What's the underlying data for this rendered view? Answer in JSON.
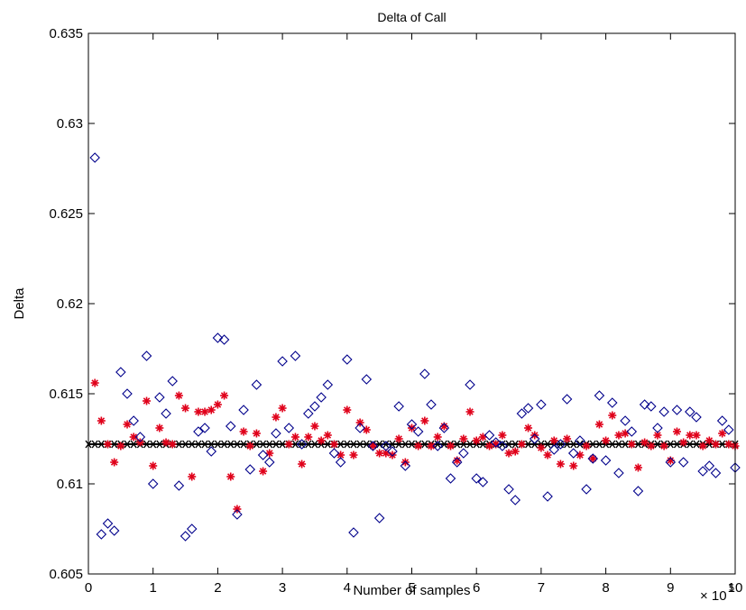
{
  "chart_data": {
    "type": "scatter",
    "title": "Delta of Call",
    "xlabel": "Number of samples",
    "ylabel": "Delta",
    "x_exponent_label": "× 10",
    "x_exponent_power": "5",
    "xlim": [
      0,
      10
    ],
    "ylim": [
      0.605,
      0.635
    ],
    "x_scale_multiplier": 100000,
    "x_ticks": [
      0,
      1,
      2,
      3,
      4,
      5,
      6,
      7,
      8,
      9,
      10
    ],
    "x_tick_labels": [
      "0",
      "1",
      "2",
      "3",
      "4",
      "5",
      "6",
      "7",
      "8",
      "9",
      "10"
    ],
    "y_ticks": [
      0.605,
      0.61,
      0.615,
      0.62,
      0.625,
      0.63,
      0.635
    ],
    "y_tick_labels": [
      "0.605",
      "0.61",
      "0.615",
      "0.62",
      "0.625",
      "0.63",
      "0.635"
    ],
    "grid": false,
    "series": [
      {
        "marker": "diamond",
        "color": "#00008b",
        "points": [
          [
            0.1,
            0.6281
          ],
          [
            0.2,
            0.6072
          ],
          [
            0.3,
            0.6078
          ],
          [
            0.4,
            0.6074
          ],
          [
            0.5,
            0.6162
          ],
          [
            0.6,
            0.615
          ],
          [
            0.7,
            0.6135
          ],
          [
            0.8,
            0.6126
          ],
          [
            0.9,
            0.6171
          ],
          [
            1.0,
            0.61
          ],
          [
            1.1,
            0.6148
          ],
          [
            1.2,
            0.6139
          ],
          [
            1.3,
            0.6157
          ],
          [
            1.4,
            0.6099
          ],
          [
            1.5,
            0.6071
          ],
          [
            1.6,
            0.6075
          ],
          [
            1.7,
            0.6129
          ],
          [
            1.8,
            0.6131
          ],
          [
            1.9,
            0.6118
          ],
          [
            2.0,
            0.6181
          ],
          [
            2.1,
            0.618
          ],
          [
            2.2,
            0.6132
          ],
          [
            2.3,
            0.6083
          ],
          [
            2.4,
            0.6141
          ],
          [
            2.5,
            0.6108
          ],
          [
            2.6,
            0.6155
          ],
          [
            2.7,
            0.6116
          ],
          [
            2.8,
            0.6112
          ],
          [
            2.9,
            0.6128
          ],
          [
            3.0,
            0.6168
          ],
          [
            3.1,
            0.6131
          ],
          [
            3.2,
            0.6171
          ],
          [
            3.3,
            0.6122
          ],
          [
            3.4,
            0.6139
          ],
          [
            3.5,
            0.6143
          ],
          [
            3.6,
            0.6148
          ],
          [
            3.7,
            0.6155
          ],
          [
            3.8,
            0.6117
          ],
          [
            3.9,
            0.6112
          ],
          [
            4.0,
            0.6169
          ],
          [
            4.1,
            0.6073
          ],
          [
            4.2,
            0.6131
          ],
          [
            4.3,
            0.6158
          ],
          [
            4.4,
            0.6121
          ],
          [
            4.5,
            0.6081
          ],
          [
            4.6,
            0.6121
          ],
          [
            4.7,
            0.6118
          ],
          [
            4.8,
            0.6143
          ],
          [
            4.9,
            0.611
          ],
          [
            5.0,
            0.6133
          ],
          [
            5.1,
            0.6129
          ],
          [
            5.2,
            0.6161
          ],
          [
            5.3,
            0.6144
          ],
          [
            5.4,
            0.6121
          ],
          [
            5.5,
            0.6131
          ],
          [
            5.6,
            0.6103
          ],
          [
            5.7,
            0.6112
          ],
          [
            5.8,
            0.6117
          ],
          [
            5.9,
            0.6155
          ],
          [
            6.0,
            0.6103
          ],
          [
            6.1,
            0.6101
          ],
          [
            6.2,
            0.6127
          ],
          [
            6.3,
            0.6123
          ],
          [
            6.4,
            0.6121
          ],
          [
            6.5,
            0.6097
          ],
          [
            6.6,
            0.6091
          ],
          [
            6.7,
            0.6139
          ],
          [
            6.8,
            0.6142
          ],
          [
            6.9,
            0.6125
          ],
          [
            7.0,
            0.6144
          ],
          [
            7.1,
            0.6093
          ],
          [
            7.2,
            0.6119
          ],
          [
            7.3,
            0.6122
          ],
          [
            7.4,
            0.6147
          ],
          [
            7.5,
            0.6117
          ],
          [
            7.6,
            0.6124
          ],
          [
            7.7,
            0.6097
          ],
          [
            7.8,
            0.6114
          ],
          [
            7.9,
            0.6149
          ],
          [
            8.0,
            0.6113
          ],
          [
            8.1,
            0.6145
          ],
          [
            8.2,
            0.6106
          ],
          [
            8.3,
            0.6135
          ],
          [
            8.4,
            0.6129
          ],
          [
            8.5,
            0.6096
          ],
          [
            8.6,
            0.6144
          ],
          [
            8.7,
            0.6143
          ],
          [
            8.8,
            0.6131
          ],
          [
            8.9,
            0.614
          ],
          [
            9.0,
            0.6112
          ],
          [
            9.1,
            0.6141
          ],
          [
            9.2,
            0.6112
          ],
          [
            9.3,
            0.614
          ],
          [
            9.4,
            0.6137
          ],
          [
            9.5,
            0.6107
          ],
          [
            9.6,
            0.611
          ],
          [
            9.7,
            0.6106
          ],
          [
            9.8,
            0.6135
          ],
          [
            9.9,
            0.613
          ],
          [
            10.0,
            0.6109
          ]
        ]
      },
      {
        "marker": "star",
        "color": "#e0001a",
        "points": [
          [
            0.1,
            0.6156
          ],
          [
            0.2,
            0.6135
          ],
          [
            0.3,
            0.6122
          ],
          [
            0.4,
            0.6112
          ],
          [
            0.5,
            0.6121
          ],
          [
            0.6,
            0.6133
          ],
          [
            0.7,
            0.6126
          ],
          [
            0.8,
            0.6123
          ],
          [
            0.9,
            0.6146
          ],
          [
            1.0,
            0.611
          ],
          [
            1.1,
            0.6131
          ],
          [
            1.2,
            0.6123
          ],
          [
            1.3,
            0.6122
          ],
          [
            1.4,
            0.6149
          ],
          [
            1.5,
            0.6142
          ],
          [
            1.6,
            0.6104
          ],
          [
            1.7,
            0.614
          ],
          [
            1.8,
            0.614
          ],
          [
            1.9,
            0.6141
          ],
          [
            2.0,
            0.6144
          ],
          [
            2.1,
            0.6149
          ],
          [
            2.2,
            0.6104
          ],
          [
            2.3,
            0.6086
          ],
          [
            2.4,
            0.6129
          ],
          [
            2.5,
            0.6121
          ],
          [
            2.6,
            0.6128
          ],
          [
            2.7,
            0.6107
          ],
          [
            2.8,
            0.6117
          ],
          [
            2.9,
            0.6137
          ],
          [
            3.0,
            0.6142
          ],
          [
            3.1,
            0.6122
          ],
          [
            3.2,
            0.6126
          ],
          [
            3.3,
            0.6111
          ],
          [
            3.4,
            0.6126
          ],
          [
            3.5,
            0.6132
          ],
          [
            3.6,
            0.6124
          ],
          [
            3.7,
            0.6127
          ],
          [
            3.8,
            0.6122
          ],
          [
            3.9,
            0.6116
          ],
          [
            4.0,
            0.6141
          ],
          [
            4.1,
            0.6116
          ],
          [
            4.2,
            0.6134
          ],
          [
            4.3,
            0.613
          ],
          [
            4.4,
            0.6121
          ],
          [
            4.5,
            0.6117
          ],
          [
            4.6,
            0.6117
          ],
          [
            4.7,
            0.6116
          ],
          [
            4.8,
            0.6125
          ],
          [
            4.9,
            0.6112
          ],
          [
            5.0,
            0.6131
          ],
          [
            5.1,
            0.6121
          ],
          [
            5.2,
            0.6135
          ],
          [
            5.3,
            0.6121
          ],
          [
            5.4,
            0.6126
          ],
          [
            5.5,
            0.6132
          ],
          [
            5.6,
            0.6121
          ],
          [
            5.7,
            0.6113
          ],
          [
            5.8,
            0.6125
          ],
          [
            5.9,
            0.614
          ],
          [
            6.0,
            0.6124
          ],
          [
            6.1,
            0.6126
          ],
          [
            6.2,
            0.6121
          ],
          [
            6.3,
            0.6122
          ],
          [
            6.4,
            0.6127
          ],
          [
            6.5,
            0.6117
          ],
          [
            6.6,
            0.6118
          ],
          [
            6.7,
            0.6122
          ],
          [
            6.8,
            0.6131
          ],
          [
            6.9,
            0.6127
          ],
          [
            7.0,
            0.612
          ],
          [
            7.1,
            0.6116
          ],
          [
            7.2,
            0.6124
          ],
          [
            7.3,
            0.6111
          ],
          [
            7.4,
            0.6125
          ],
          [
            7.5,
            0.611
          ],
          [
            7.6,
            0.6116
          ],
          [
            7.7,
            0.6121
          ],
          [
            7.8,
            0.6114
          ],
          [
            7.9,
            0.6133
          ],
          [
            8.0,
            0.6124
          ],
          [
            8.1,
            0.6138
          ],
          [
            8.2,
            0.6127
          ],
          [
            8.3,
            0.6128
          ],
          [
            8.4,
            0.6122
          ],
          [
            8.5,
            0.6109
          ],
          [
            8.6,
            0.6123
          ],
          [
            8.7,
            0.6121
          ],
          [
            8.8,
            0.6127
          ],
          [
            8.9,
            0.6121
          ],
          [
            9.0,
            0.6113
          ],
          [
            9.1,
            0.6129
          ],
          [
            9.2,
            0.6123
          ],
          [
            9.3,
            0.6127
          ],
          [
            9.4,
            0.6127
          ],
          [
            9.5,
            0.6121
          ],
          [
            9.6,
            0.6124
          ],
          [
            9.7,
            0.6122
          ],
          [
            9.8,
            0.6128
          ],
          [
            9.9,
            0.6122
          ],
          [
            10.0,
            0.6121
          ]
        ]
      },
      {
        "marker": "black-cross-line",
        "color": "#000000",
        "value": 0.6122
      }
    ]
  }
}
